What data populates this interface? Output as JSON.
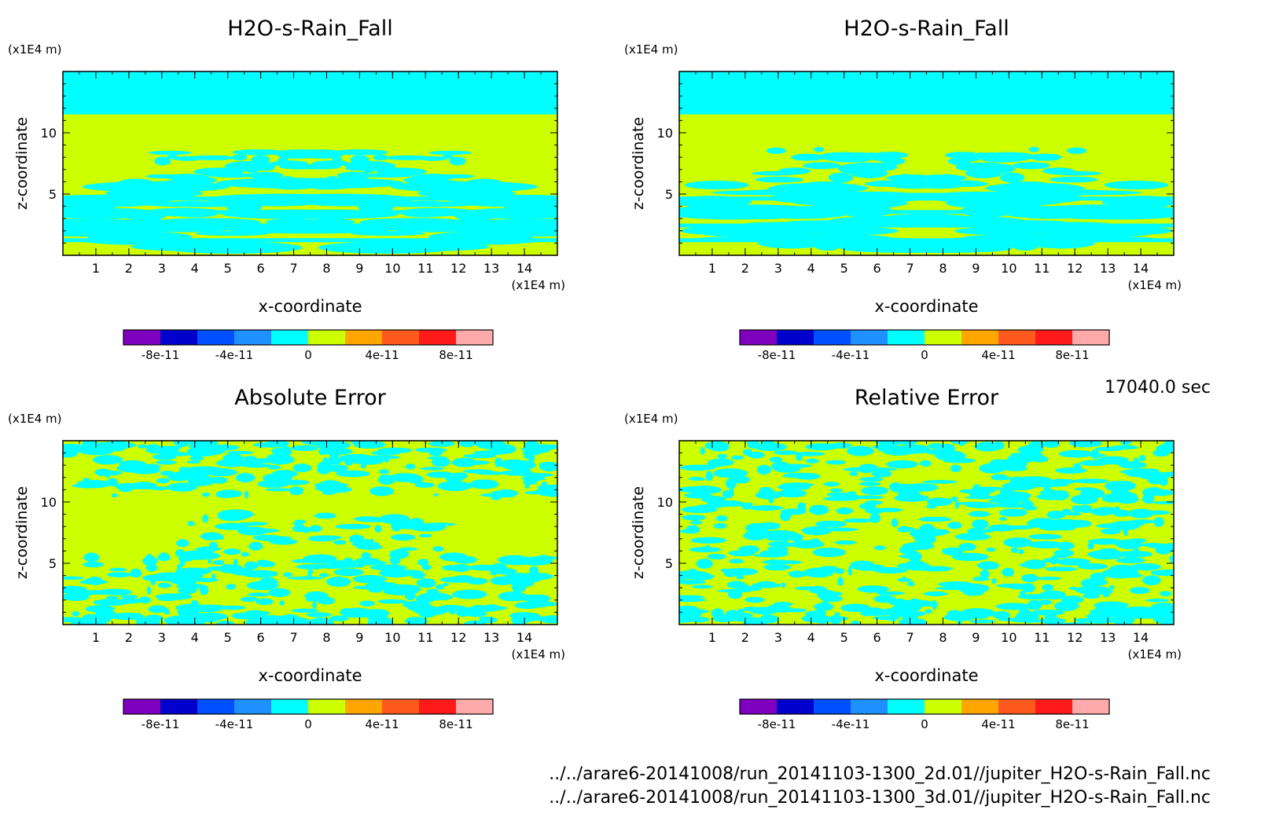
{
  "timestamp": "17040.0 sec",
  "files": [
    "../../arare6-20141008/run_20141103-1300_2d.01//jupiter_H2O-s-Rain_Fall.nc",
    "../../arare6-20141008/run_20141103-1300_3d.01//jupiter_H2O-s-Rain_Fall.nc"
  ],
  "colors": {
    "background": "#ffffff",
    "axis": "#000000",
    "levels": [
      "#7f00bf",
      "#0000cd",
      "#0050ff",
      "#1e90ff",
      "#00ffff",
      "#ccff00",
      "#ffa500",
      "#ff5a1e",
      "#ff1a1a",
      "#ffaaaa"
    ]
  },
  "colorbar": {
    "tick_labels": [
      "-8e-11",
      "-4e-11",
      "0",
      "4e-11",
      "8e-11"
    ],
    "tick_values": [
      -8e-11,
      -4e-11,
      0,
      4e-11,
      8e-11
    ],
    "range": [
      -1e-10,
      1e-10
    ]
  },
  "chart_data": [
    {
      "type": "heatmap",
      "title": "H2O-s-Rain_Fall",
      "xlabel": "x-coordinate",
      "ylabel": "z-coordinate",
      "x_unit": "(x1E4 m)",
      "y_unit": "(x1E4 m)",
      "xlim": [
        0,
        15
      ],
      "ylim": [
        0,
        15
      ],
      "xticks": [
        "1",
        "2",
        "3",
        "4",
        "5",
        "6",
        "7",
        "8",
        "9",
        "10",
        "11",
        "12",
        "13",
        "14"
      ],
      "yticks": [
        "5",
        "10"
      ],
      "field_levels": [
        "0",
        "4e-11"
      ],
      "pattern": "layered-symmetric"
    },
    {
      "type": "heatmap",
      "title": "H2O-s-Rain_Fall",
      "xlabel": "x-coordinate",
      "ylabel": "z-coordinate",
      "x_unit": "(x1E4 m)",
      "y_unit": "(x1E4 m)",
      "xlim": [
        0,
        15
      ],
      "ylim": [
        0,
        15
      ],
      "xticks": [
        "1",
        "2",
        "3",
        "4",
        "5",
        "6",
        "7",
        "8",
        "9",
        "10",
        "11",
        "12",
        "13",
        "14"
      ],
      "yticks": [
        "5",
        "10"
      ],
      "field_levels": [
        "0",
        "4e-11"
      ],
      "pattern": "layered-symmetric"
    },
    {
      "type": "heatmap",
      "title": "Absolute Error",
      "xlabel": "x-coordinate",
      "ylabel": "z-coordinate",
      "x_unit": "(x1E4 m)",
      "y_unit": "(x1E4 m)",
      "xlim": [
        0,
        15
      ],
      "ylim": [
        0,
        15
      ],
      "xticks": [
        "1",
        "2",
        "3",
        "4",
        "5",
        "6",
        "7",
        "8",
        "9",
        "10",
        "11",
        "12",
        "13",
        "14"
      ],
      "yticks": [
        "5",
        "10"
      ],
      "field_levels": [
        "0",
        "4e-11"
      ],
      "pattern": "speckled-bands"
    },
    {
      "type": "heatmap",
      "title": "Relative Error",
      "xlabel": "x-coordinate",
      "ylabel": "z-coordinate",
      "x_unit": "(x1E4 m)",
      "y_unit": "(x1E4 m)",
      "xlim": [
        0,
        15
      ],
      "ylim": [
        0,
        15
      ],
      "xticks": [
        "1",
        "2",
        "3",
        "4",
        "5",
        "6",
        "7",
        "8",
        "9",
        "10",
        "11",
        "12",
        "13",
        "14"
      ],
      "yticks": [
        "5",
        "10"
      ],
      "field_levels": [
        "0",
        "4e-11"
      ],
      "pattern": "speckled-full"
    }
  ]
}
